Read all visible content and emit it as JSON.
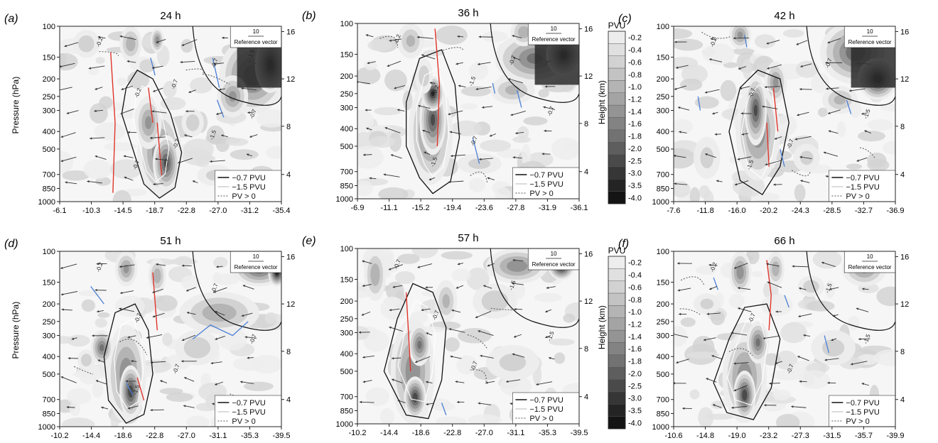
{
  "figure": {
    "y_label": "Pressure (hPa)",
    "y2_label": "Height (km)",
    "colorbar_title": "PVU",
    "colorbar_levels": [
      "-0.2",
      "-0.4",
      "-0.6",
      "-0.8",
      "-1.0",
      "-1.2",
      "-1.4",
      "-1.6",
      "-1.8",
      "-2.0",
      "-2.5",
      "-3.0",
      "-3.5",
      "-4.0"
    ],
    "reference_vector_value": "10",
    "reference_vector_label": "Reference vector",
    "legend": [
      "−0.7 PVU",
      "−1.5 PVU",
      "PV > 0"
    ]
  },
  "chart_data": [
    {
      "type": "heatmap",
      "panel_label": "(a)",
      "title": "24 h",
      "x_ticks": [
        "-6.1",
        "-10.3",
        "-14.5",
        "-18.7",
        "-22.8",
        "-27.0",
        "-31.2",
        "-35.4"
      ],
      "y_ticks": [
        "100",
        "150",
        "200",
        "250",
        "300",
        "400",
        "500",
        "700",
        "850",
        "1000"
      ],
      "y2_ticks": [
        "16",
        "12",
        "8",
        "4"
      ],
      "contour_labels": [
        "-0.2",
        "-0.2",
        "-0.7",
        "-0.7",
        "-0.7",
        "-0.7",
        "-0.7",
        "-1.5",
        "-1.5"
      ]
    },
    {
      "type": "heatmap",
      "panel_label": "(b)",
      "title": "36 h",
      "x_ticks": [
        "-6.9",
        "-11.1",
        "-15.2",
        "-19.4",
        "-23.6",
        "-27.8",
        "-31.9",
        "-36.1"
      ],
      "y_ticks": [
        "100",
        "150",
        "200",
        "250",
        "300",
        "400",
        "500",
        "700",
        "850",
        "1000"
      ],
      "y2_ticks": [
        "16",
        "12",
        "8",
        "4"
      ],
      "contour_labels": [
        "-0.2",
        "-0.2",
        "-0.7",
        "-0.7",
        "-0.7",
        "-1.5",
        "-1.5"
      ]
    },
    {
      "type": "heatmap",
      "panel_label": "(c)",
      "title": "42 h",
      "x_ticks": [
        "-7.6",
        "-11.8",
        "-16.0",
        "-20.2",
        "-24.3",
        "-28.5",
        "-32.7",
        "-36.9"
      ],
      "y_ticks": [
        "100",
        "150",
        "200",
        "250",
        "300",
        "400",
        "500",
        "700",
        "850",
        "1000"
      ],
      "y2_ticks": [
        "16",
        "12",
        "8",
        "4"
      ],
      "contour_labels": [
        "-0.2",
        "-0.7",
        "-0.7",
        "-0.7",
        "-1.5",
        "-1.5"
      ]
    },
    {
      "type": "heatmap",
      "panel_label": "(d)",
      "title": "51 h",
      "x_ticks": [
        "-10.2",
        "-14.4",
        "-18.6",
        "-22.8",
        "-27.0",
        "-31.1",
        "-35.3",
        "-39.5"
      ],
      "y_ticks": [
        "100",
        "150",
        "200",
        "250",
        "300",
        "400",
        "500",
        "700",
        "850",
        "1000"
      ],
      "y2_ticks": [
        "16",
        "12",
        "8",
        "4"
      ],
      "contour_labels": [
        "-0.2",
        "-0.7",
        "-0.7",
        "-0.7",
        "-0.7",
        "-1.5"
      ]
    },
    {
      "type": "heatmap",
      "panel_label": "(e)",
      "title": "57 h",
      "x_ticks": [
        "-10.2",
        "-14.4",
        "-18.6",
        "-22.8",
        "-27.0",
        "-31.1",
        "-35.3",
        "-39.5"
      ],
      "y_ticks": [
        "100",
        "150",
        "200",
        "250",
        "300",
        "400",
        "500",
        "700",
        "850",
        "1000"
      ],
      "y2_ticks": [
        "16",
        "12",
        "8",
        "4"
      ],
      "contour_labels": [
        "-0.7",
        "-0.7",
        "-0.7",
        "-1.5",
        "-1.5"
      ]
    },
    {
      "type": "heatmap",
      "panel_label": "(f)",
      "title": "66 h",
      "x_ticks": [
        "-10.6",
        "-14.8",
        "-19.0",
        "-23.2",
        "-27.3",
        "-31.5",
        "-35.7",
        "-39.9"
      ],
      "y_ticks": [
        "100",
        "150",
        "200",
        "250",
        "300",
        "400",
        "500",
        "700",
        "850",
        "1000"
      ],
      "y2_ticks": [
        "16",
        "12",
        "8",
        "4"
      ],
      "contour_labels": [
        "-0.2",
        "-0.7",
        "-0.7",
        "-1.5",
        "-1.5"
      ]
    }
  ]
}
